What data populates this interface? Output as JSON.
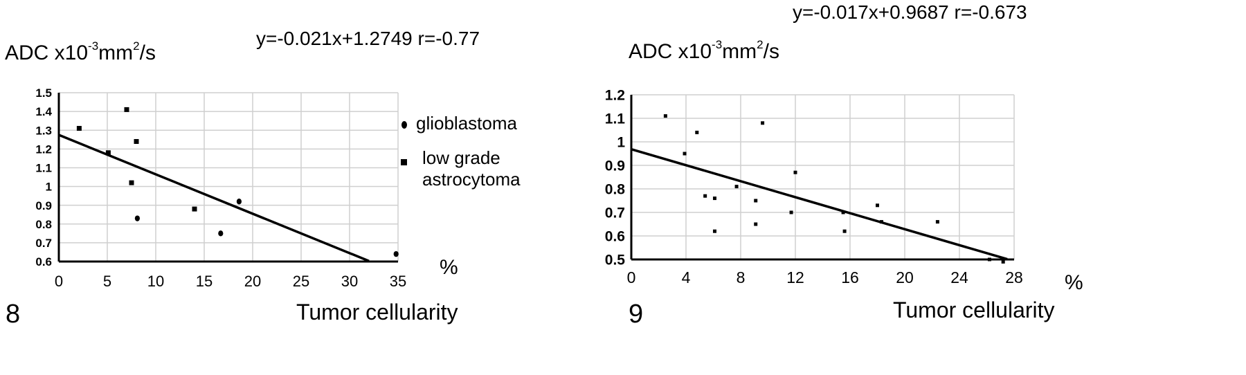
{
  "chart_data": [
    {
      "figure_number": "8",
      "type": "scatter",
      "ylabel_prefix": "ADC x10",
      "ylabel_exp": "-3",
      "ylabel_mid": "mm",
      "ylabel_exp2": "2",
      "ylabel_suffix": "/s",
      "xlabel": "Tumor cellularity",
      "xunit": "%",
      "regression": {
        "equation": "y=-0.021x+1.2749   r=-0.77",
        "slope": -0.021,
        "intercept": 1.2749,
        "x_end": 32
      },
      "xlim": [
        0,
        35
      ],
      "ylim": [
        0.6,
        1.5
      ],
      "x_ticks": [
        0,
        5,
        10,
        15,
        20,
        25,
        30,
        35
      ],
      "x_tick_labels": [
        "0",
        "5",
        "10",
        "15",
        "20",
        "25",
        "30",
        "35"
      ],
      "y_ticks": [
        0.6,
        0.7,
        0.8,
        0.9,
        1.0,
        1.1,
        1.2,
        1.3,
        1.4,
        1.5
      ],
      "y_tick_labels": [
        "0.6",
        "0.7",
        "0.8",
        "0.9",
        "1",
        "1.1",
        "1.2",
        "1.3",
        "1.4",
        "1.5"
      ],
      "grid": true,
      "legend_position": "right",
      "series": [
        {
          "name": "glioblastoma",
          "marker": "circle",
          "x": [
            8.1,
            16.7,
            18.6,
            34.8
          ],
          "y": [
            0.83,
            0.75,
            0.92,
            0.64
          ]
        },
        {
          "name": "low grade astrocytoma",
          "legend_lines": [
            "low grade",
            "astrocytoma"
          ],
          "marker": "square",
          "x": [
            2.1,
            5.1,
            7.0,
            7.5,
            8.0,
            14.0
          ],
          "y": [
            1.31,
            1.18,
            1.41,
            1.02,
            1.24,
            0.88
          ]
        }
      ]
    },
    {
      "figure_number": "9",
      "type": "scatter",
      "ylabel_prefix": "ADC x10",
      "ylabel_exp": "-3",
      "ylabel_mid": "mm",
      "ylabel_exp2": "2",
      "ylabel_suffix": "/s",
      "xlabel": "Tumor cellularity",
      "xunit": "%",
      "regression": {
        "equation": "y=-0.017x+0.9687  r=-0.673",
        "slope": -0.017,
        "intercept": 0.9687,
        "x_end": 27.5
      },
      "xlim": [
        0,
        28
      ],
      "ylim": [
        0.5,
        1.2
      ],
      "x_ticks": [
        0,
        4,
        8,
        12,
        16,
        20,
        24,
        28
      ],
      "x_tick_labels": [
        "0",
        "4",
        "8",
        "12",
        "16",
        "20",
        "24",
        "28"
      ],
      "y_ticks": [
        0.5,
        0.6,
        0.7,
        0.8,
        0.9,
        1.0,
        1.1,
        1.2
      ],
      "y_tick_labels": [
        "0.5",
        "0.6",
        "0.7",
        "0.8",
        "0.9",
        "1",
        "1.1",
        "1.2"
      ],
      "grid": true,
      "series": [
        {
          "marker": "square",
          "x": [
            2.5,
            3.9,
            4.8,
            5.4,
            6.1,
            6.1,
            7.7,
            9.1,
            9.1,
            9.6,
            11.7,
            12.0,
            15.5,
            15.6,
            18.0,
            18.3,
            22.4,
            26.2,
            27.2
          ],
          "y": [
            1.11,
            0.95,
            1.04,
            0.77,
            0.76,
            0.62,
            0.81,
            0.75,
            0.65,
            1.08,
            0.7,
            0.87,
            0.7,
            0.62,
            0.73,
            0.66,
            0.66,
            0.5,
            0.49
          ]
        }
      ]
    }
  ]
}
